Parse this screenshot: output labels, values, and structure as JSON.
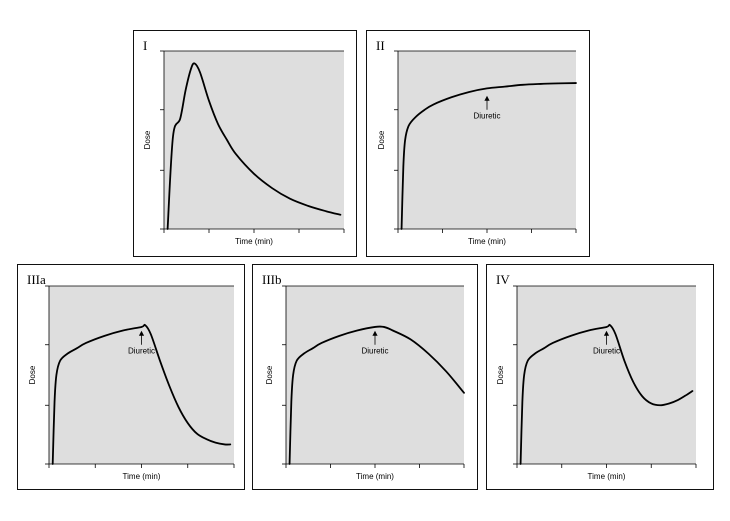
{
  "chart_data": [
    {
      "type": "line",
      "panel_label": "I",
      "xlabel": "Time (min)",
      "ylabel": "Dose",
      "xlim": [
        0,
        1
      ],
      "ylim": [
        0,
        1
      ],
      "x_ticks": [
        0,
        0.25,
        0.5,
        0.75,
        1.0
      ],
      "y_ticks": [
        0,
        0.33,
        0.67,
        1.0
      ],
      "series": [
        {
          "x": [
            0.02,
            0.05,
            0.09,
            0.12,
            0.15,
            0.17,
            0.2,
            0.25,
            0.3,
            0.35,
            0.4,
            0.5,
            0.6,
            0.7,
            0.8,
            0.9,
            0.98
          ],
          "y": [
            0.0,
            0.52,
            0.62,
            0.78,
            0.9,
            0.93,
            0.88,
            0.72,
            0.59,
            0.5,
            0.42,
            0.31,
            0.23,
            0.17,
            0.13,
            0.1,
            0.08
          ]
        }
      ]
    },
    {
      "type": "line",
      "panel_label": "II",
      "xlabel": "Time (min)",
      "ylabel": "Dose",
      "xlim": [
        0,
        1
      ],
      "ylim": [
        0,
        1
      ],
      "x_ticks": [
        0,
        0.25,
        0.5,
        0.75,
        1.0
      ],
      "y_ticks": [
        0,
        0.33,
        0.67,
        1.0
      ],
      "annotation": {
        "text": "Diuretic",
        "x": 0.5,
        "y": 0.76
      },
      "series": [
        {
          "x": [
            0.02,
            0.03,
            0.04,
            0.06,
            0.1,
            0.15,
            0.2,
            0.3,
            0.4,
            0.5,
            0.6,
            0.7,
            0.8,
            0.9,
            1.0
          ],
          "y": [
            0.0,
            0.35,
            0.5,
            0.58,
            0.63,
            0.67,
            0.7,
            0.74,
            0.77,
            0.79,
            0.8,
            0.81,
            0.815,
            0.818,
            0.82
          ]
        }
      ]
    },
    {
      "type": "line",
      "panel_label": "IIIa",
      "xlabel": "Time (min)",
      "ylabel": "Dose",
      "xlim": [
        0,
        1
      ],
      "ylim": [
        0,
        1
      ],
      "x_ticks": [
        0,
        0.25,
        0.5,
        0.75,
        1.0
      ],
      "y_ticks": [
        0,
        0.33,
        0.67,
        1.0
      ],
      "annotation": {
        "text": "Diuretic",
        "x": 0.5,
        "y": 0.76
      },
      "series": [
        {
          "x": [
            0.02,
            0.03,
            0.04,
            0.06,
            0.1,
            0.15,
            0.2,
            0.3,
            0.4,
            0.5,
            0.52,
            0.55,
            0.6,
            0.65,
            0.7,
            0.75,
            0.8,
            0.85,
            0.9,
            0.95,
            0.98
          ],
          "y": [
            0.0,
            0.35,
            0.5,
            0.58,
            0.62,
            0.65,
            0.68,
            0.72,
            0.75,
            0.77,
            0.78,
            0.73,
            0.58,
            0.44,
            0.32,
            0.23,
            0.17,
            0.14,
            0.12,
            0.11,
            0.11
          ]
        }
      ]
    },
    {
      "type": "line",
      "panel_label": "IIIb",
      "xlabel": "Time (min)",
      "ylabel": "Dose",
      "xlim": [
        0,
        1
      ],
      "ylim": [
        0,
        1
      ],
      "x_ticks": [
        0,
        0.25,
        0.5,
        0.75,
        1.0
      ],
      "y_ticks": [
        0,
        0.33,
        0.67,
        1.0
      ],
      "annotation": {
        "text": "Diuretic",
        "x": 0.5,
        "y": 0.76
      },
      "series": [
        {
          "x": [
            0.02,
            0.03,
            0.04,
            0.06,
            0.1,
            0.15,
            0.2,
            0.3,
            0.4,
            0.5,
            0.55,
            0.6,
            0.7,
            0.8,
            0.9,
            1.0
          ],
          "y": [
            0.0,
            0.35,
            0.5,
            0.58,
            0.62,
            0.65,
            0.68,
            0.72,
            0.75,
            0.77,
            0.77,
            0.75,
            0.7,
            0.62,
            0.52,
            0.4
          ]
        }
      ]
    },
    {
      "type": "line",
      "panel_label": "IV",
      "xlabel": "Time (min)",
      "ylabel": "Dose",
      "xlim": [
        0,
        1
      ],
      "ylim": [
        0,
        1
      ],
      "x_ticks": [
        0,
        0.25,
        0.5,
        0.75,
        1.0
      ],
      "y_ticks": [
        0,
        0.33,
        0.67,
        1.0
      ],
      "annotation": {
        "text": "Diuretic",
        "x": 0.5,
        "y": 0.76
      },
      "series": [
        {
          "x": [
            0.02,
            0.03,
            0.04,
            0.06,
            0.1,
            0.15,
            0.2,
            0.3,
            0.4,
            0.5,
            0.52,
            0.55,
            0.6,
            0.65,
            0.7,
            0.75,
            0.8,
            0.85,
            0.9,
            0.95,
            0.98
          ],
          "y": [
            0.0,
            0.35,
            0.5,
            0.58,
            0.62,
            0.65,
            0.68,
            0.72,
            0.75,
            0.77,
            0.78,
            0.73,
            0.58,
            0.46,
            0.38,
            0.34,
            0.33,
            0.34,
            0.36,
            0.39,
            0.41
          ]
        }
      ]
    }
  ]
}
